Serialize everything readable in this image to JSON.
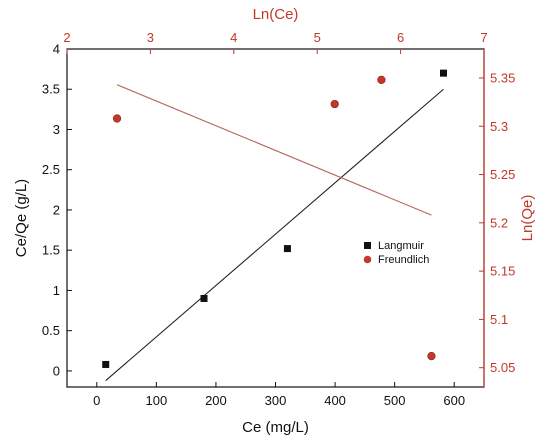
{
  "chart_data": {
    "type": "scatter",
    "title": "",
    "colors": {
      "langmuir": "#111111",
      "freundlich": "#c0392b",
      "langmuir_fit": "#222222",
      "freundlich_fit": "#b5655a",
      "right_axis": "#c0392b",
      "top_axis": "#c0392b"
    },
    "axes": {
      "bottom": {
        "label": "Ce (mg/L)",
        "min": -50,
        "max": 650,
        "ticks": [
          0,
          100,
          200,
          300,
          400,
          500,
          600
        ],
        "tick_labels": [
          "0",
          "100",
          "200",
          "300",
          "400",
          "500",
          "600"
        ]
      },
      "left": {
        "label": "Ce/Qe (g/L)",
        "min": -0.2,
        "max": 4.0,
        "ticks": [
          0,
          0.5,
          1,
          1.5,
          2,
          2.5,
          3,
          3.5,
          4
        ],
        "tick_labels": [
          "0",
          "0.5",
          "1",
          "1.5",
          "2",
          "2.5",
          "3",
          "3.5",
          "4"
        ]
      },
      "top": {
        "label": "Ln(Ce)",
        "min": 2,
        "max": 7,
        "ticks": [
          2,
          3,
          4,
          5,
          6,
          7
        ],
        "tick_labels": [
          "2",
          "3",
          "4",
          "5",
          "6",
          "7"
        ]
      },
      "right": {
        "label": "Ln(Qe)",
        "min": 5.03,
        "max": 5.38,
        "ticks": [
          5.05,
          5.1,
          5.15,
          5.2,
          5.25,
          5.3,
          5.35
        ],
        "tick_labels": [
          "5.05",
          "5.1",
          "5.15",
          "5.2",
          "5.25",
          "5.3",
          "5.35"
        ]
      }
    },
    "series": [
      {
        "name": "Langmuir",
        "axes": [
          "bottom",
          "left"
        ],
        "marker": "square",
        "x": [
          15,
          180,
          320,
          582
        ],
        "y": [
          0.08,
          0.9,
          1.52,
          3.7
        ],
        "fit": {
          "x": [
            15,
            582
          ],
          "y": [
            -0.12,
            3.5
          ]
        }
      },
      {
        "name": "Freundlich",
        "axes": [
          "top",
          "right"
        ],
        "marker": "circle",
        "x": [
          2.6,
          5.21,
          5.77,
          6.37
        ],
        "y": [
          5.308,
          5.323,
          5.348,
          5.062
        ],
        "fit": {
          "x": [
            2.6,
            6.37
          ],
          "y": [
            5.343,
            5.208
          ]
        }
      }
    ],
    "legend": {
      "position": "center-right",
      "entries": [
        "Langmuir",
        "Freundlich"
      ]
    },
    "grid": false
  }
}
